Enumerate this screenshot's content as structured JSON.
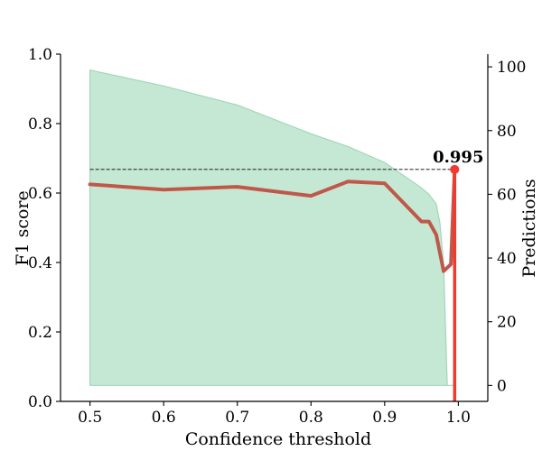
{
  "chart_data": {
    "type": "line",
    "xlabel": "Confidence threshold",
    "ylabel": "F1 score",
    "y2label": "Predictions",
    "xlim": [
      0.46,
      1.04
    ],
    "ylim": [
      0.0,
      1.0
    ],
    "y2lim": [
      -5,
      104
    ],
    "x_ticks": [
      0.5,
      0.6,
      0.7,
      0.8,
      0.9,
      1.0
    ],
    "x_tick_labels": [
      "0.5",
      "0.6",
      "0.7",
      "0.8",
      "0.9",
      "1.0"
    ],
    "y_ticks": [
      0.0,
      0.2,
      0.4,
      0.6,
      0.8,
      1.0
    ],
    "y_tick_labels": [
      "0.0",
      "0.2",
      "0.4",
      "0.6",
      "0.8",
      "1.0"
    ],
    "y2_ticks": [
      0,
      20,
      40,
      60,
      80,
      100
    ],
    "y2_tick_labels": [
      "0",
      "20",
      "40",
      "60",
      "80",
      "100"
    ],
    "grid": false,
    "series": [
      {
        "kind": "area",
        "axis": "right",
        "color": "#9fd8b8",
        "x": [
          0.5,
          0.6,
          0.7,
          0.8,
          0.85,
          0.9,
          0.95,
          0.96,
          0.97,
          0.975,
          0.98,
          0.985,
          0.99,
          0.995
        ],
        "values": [
          99,
          94,
          88,
          79,
          75,
          70,
          62,
          60,
          57,
          51,
          38,
          0,
          0,
          0
        ]
      },
      {
        "kind": "line",
        "axis": "left",
        "color": "#c0584a",
        "x": [
          0.5,
          0.6,
          0.7,
          0.8,
          0.85,
          0.9,
          0.95,
          0.96,
          0.97,
          0.98,
          0.99,
          0.995
        ],
        "values": [
          0.625,
          0.61,
          0.618,
          0.592,
          0.633,
          0.628,
          0.518,
          0.518,
          0.48,
          0.375,
          0.395,
          0.668
        ]
      }
    ],
    "highlight": {
      "x": 0.995,
      "y": 0.668,
      "label": "0.995",
      "color": "#f03a2f"
    }
  }
}
